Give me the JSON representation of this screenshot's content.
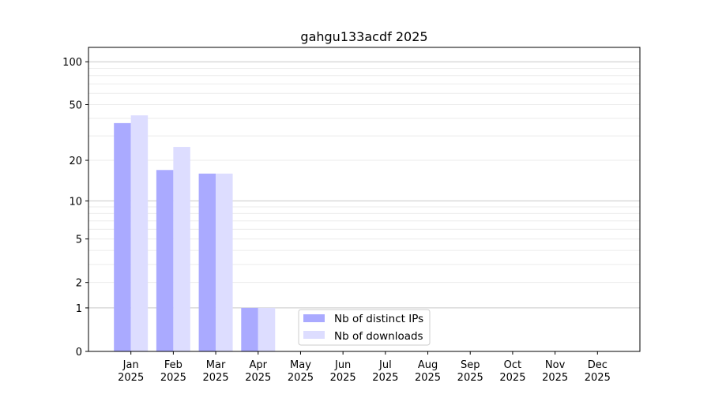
{
  "chart_data": {
    "type": "bar",
    "title": "gahgu133acdf 2025",
    "xlabel": "",
    "ylabel": "",
    "y_scale": "log(1+y)",
    "ylim": [
      0,
      126
    ],
    "xlim": [
      -1,
      12
    ],
    "y_ticks": [
      0,
      1,
      2,
      5,
      10,
      20,
      50,
      100
    ],
    "grid": true,
    "legend_position": "lower-center",
    "categories": [
      "Jan\n2025",
      "Feb\n2025",
      "Mar\n2025",
      "Apr\n2025",
      "May\n2025",
      "Jun\n2025",
      "Jul\n2025",
      "Aug\n2025",
      "Sep\n2025",
      "Oct\n2025",
      "Nov\n2025",
      "Dec\n2025"
    ],
    "series": [
      {
        "name": "Nb of distinct IPs",
        "color": "#aaaaff",
        "values": [
          37,
          17,
          16,
          1,
          0,
          0,
          0,
          0,
          0,
          0,
          0,
          0
        ]
      },
      {
        "name": "Nb of downloads",
        "color": "#ddddff",
        "values": [
          42,
          25,
          16,
          1,
          0,
          0,
          0,
          0,
          0,
          0,
          0,
          0
        ]
      }
    ]
  }
}
